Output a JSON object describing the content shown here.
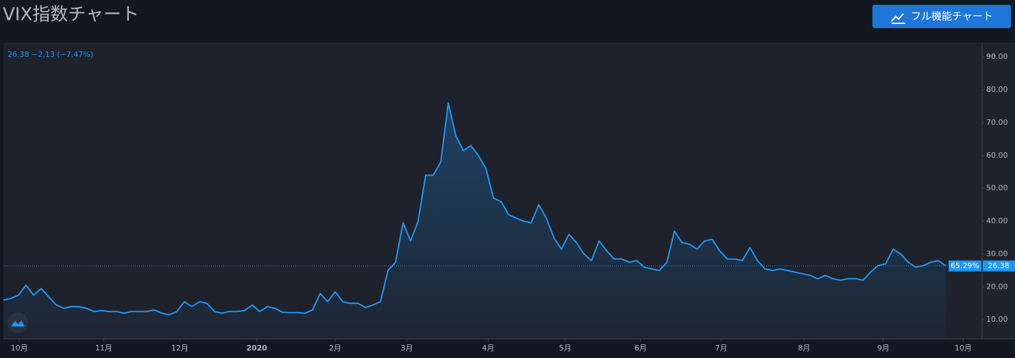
{
  "toolbar": {
    "button": "フル機能チャート"
  },
  "chart_data": {
    "type": "line",
    "title": "VIX指数チャート",
    "legend_text": "26.38 −2.13 (−7.47%)",
    "last_label": "26.38",
    "percent_label": "65.29%",
    "series": [
      {
        "name": "VIX",
        "color": "#2196f3",
        "values": [
          16,
          16.5,
          17.5,
          20.5,
          17.5,
          19.5,
          17,
          14.5,
          13.5,
          14,
          14,
          13.5,
          12.5,
          12.8,
          12.5,
          12.5,
          12,
          12.5,
          12.5,
          12.5,
          13,
          12,
          11.5,
          12.5,
          15.5,
          14,
          15.5,
          15,
          12.5,
          12,
          12.5,
          12.5,
          12.8,
          14.5,
          12.5,
          14,
          13.5,
          12.3,
          12.2,
          12.2,
          12,
          13,
          18,
          15.5,
          18.5,
          15.5,
          15,
          15,
          13.7,
          14.5,
          15.5,
          25,
          27.5,
          39.5,
          34,
          40,
          54,
          54,
          58,
          76,
          66,
          61.5,
          63,
          60,
          56,
          47,
          46,
          42,
          41,
          40,
          39.5,
          45,
          41,
          35,
          31.5,
          36,
          33.5,
          30,
          28,
          34,
          31,
          28.5,
          28.5,
          27.5,
          28,
          26,
          25.5,
          25,
          27.5,
          37,
          33.5,
          33,
          31.5,
          34,
          34.5,
          31,
          28.5,
          28.5,
          28,
          32,
          28,
          25.5,
          25,
          25.5,
          25,
          24.5,
          24,
          23.5,
          22.5,
          23.5,
          22.5,
          22,
          22.5,
          22.5,
          22,
          24.5,
          26.5,
          27,
          31.5,
          30,
          27.5,
          26,
          26.5,
          27.5,
          28,
          26.38
        ]
      }
    ],
    "xlim": [
      0,
      129.8
    ],
    "xticks": [
      {
        "value": 2.1,
        "label": "10月"
      },
      {
        "value": 13.3,
        "label": "11月"
      },
      {
        "value": 23.4,
        "label": "12月"
      },
      {
        "value": 33.6,
        "label": "2020"
      },
      {
        "value": 44,
        "label": "2月"
      },
      {
        "value": 53.5,
        "label": "3月"
      },
      {
        "value": 64.3,
        "label": "4月"
      },
      {
        "value": 74.5,
        "label": "5月"
      },
      {
        "value": 84.5,
        "label": "6月"
      },
      {
        "value": 95.2,
        "label": "7月"
      },
      {
        "value": 106.2,
        "label": "8月"
      },
      {
        "value": 116.7,
        "label": "9月"
      },
      {
        "value": 127.3,
        "label": "10月"
      }
    ],
    "ylim": [
      4.2,
      94.4
    ],
    "yticks": [
      {
        "value": 10,
        "label": "10.00"
      },
      {
        "value": 20,
        "label": "20.00"
      },
      {
        "value": 30,
        "label": "30.00"
      },
      {
        "value": 40,
        "label": "40.00"
      },
      {
        "value": 50,
        "label": "50.00"
      },
      {
        "value": 60,
        "label": "60.00"
      },
      {
        "value": 70,
        "label": "70.00"
      },
      {
        "value": 80,
        "label": "80.00"
      },
      {
        "value": 90,
        "label": "90.00"
      }
    ]
  }
}
